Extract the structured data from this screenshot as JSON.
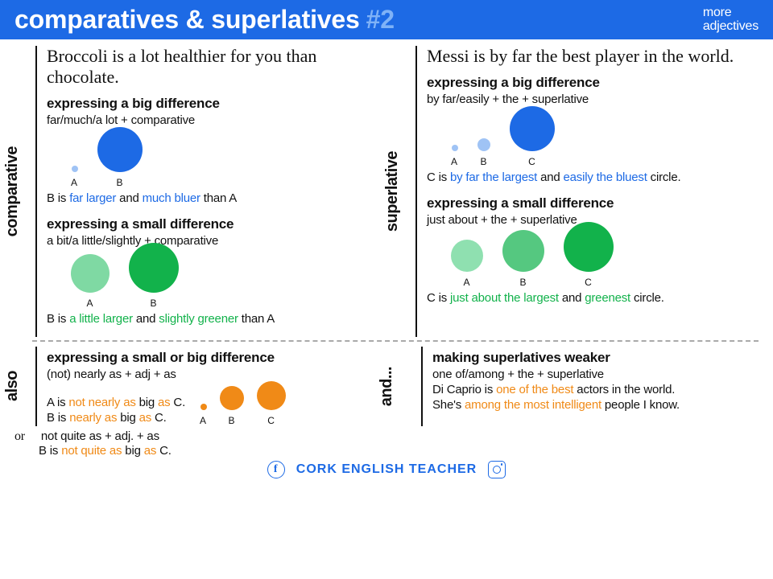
{
  "header": {
    "title": "comparatives & superlatives",
    "num": "#2",
    "sub1": "more",
    "sub2": "adjectives",
    "bg": "#1d6ae5",
    "accent": "#7fb2f7"
  },
  "labels": {
    "left": "comparative",
    "right": "superlative",
    "also": "also",
    "and": "and..."
  },
  "comp": {
    "script": "Broccoli is a lot healthier for you than chocolate.",
    "big": {
      "title": "expressing a big difference",
      "rule": "far/much/a lot + comparative",
      "circles": [
        {
          "label": "A",
          "size": 8,
          "color": "#9fc3f5"
        },
        {
          "label": "B",
          "size": 56,
          "color": "#1d6ae5"
        }
      ],
      "sent_pre": "B is ",
      "sent_h1": "far larger",
      "sent_mid": " and ",
      "sent_h2": "much bluer",
      "sent_post": " than A"
    },
    "small": {
      "title": "expressing a small difference",
      "rule": "a bit/a little/slightly + comparative",
      "circles": [
        {
          "label": "A",
          "size": 48,
          "color": "#7fd9a3"
        },
        {
          "label": "B",
          "size": 62,
          "color": "#12b24b"
        }
      ],
      "sent_pre": "B is ",
      "sent_h1": "a little larger",
      "sent_mid": " and ",
      "sent_h2": "slightly greener",
      "sent_post": " than A"
    }
  },
  "sup": {
    "script": "Messi is by far the best player in the world.",
    "big": {
      "title": "expressing a big difference",
      "rule": "by far/easily + the + superlative",
      "circles": [
        {
          "label": "A",
          "size": 8,
          "color": "#9fc3f5"
        },
        {
          "label": "B",
          "size": 16,
          "color": "#9fc3f5"
        },
        {
          "label": "C",
          "size": 56,
          "color": "#1d6ae5"
        }
      ],
      "sent_pre": "C is ",
      "sent_h1": "by far the largest",
      "sent_mid": " and ",
      "sent_h2": "easily the bluest",
      "sent_post": " circle."
    },
    "small": {
      "title": "expressing a small difference",
      "rule": "just about + the + superlative",
      "circles": [
        {
          "label": "A",
          "size": 40,
          "color": "#8fe0b0"
        },
        {
          "label": "B",
          "size": 52,
          "color": "#55c880"
        },
        {
          "label": "C",
          "size": 62,
          "color": "#12b24b"
        }
      ],
      "sent_pre": "C is ",
      "sent_h1": "just about the largest",
      "sent_mid": " and ",
      "sent_h2": "greenest",
      "sent_post": " circle."
    }
  },
  "also": {
    "title": "expressing a small or big difference",
    "rule": "(not) nearly as + adj + as",
    "line1_pre": "A is ",
    "line1_h": "not nearly as",
    "line1_mid": " big ",
    "line1_as": "as",
    "line1_post": " C.",
    "line2_pre": "B is ",
    "line2_h": "nearly as",
    "line2_mid": " big ",
    "line2_as": "as",
    "line2_post": " C.",
    "circles": [
      {
        "label": "A",
        "size": 8,
        "color": "#f08a17"
      },
      {
        "label": "B",
        "size": 30,
        "color": "#f08a17"
      },
      {
        "label": "C",
        "size": 36,
        "color": "#f08a17"
      }
    ],
    "or_label": "or",
    "or_rule": "not quite as + adj. + as",
    "or_pre": "B is ",
    "or_h": "not quite as",
    "or_mid": " big ",
    "or_as": "as",
    "or_post": " C."
  },
  "and": {
    "title": "making superlatives weaker",
    "rule": "one of/among + the + superlative",
    "line1_pre": "Di Caprio is ",
    "line1_h": "one of the best",
    "line1_post": " actors in the world.",
    "line2_pre": "She's ",
    "line2_h": "among the most intelligent",
    "line2_post": " people I know."
  },
  "footer": {
    "brand": "CORK ENGLISH TEACHER",
    "color": "#1d6ae5"
  }
}
